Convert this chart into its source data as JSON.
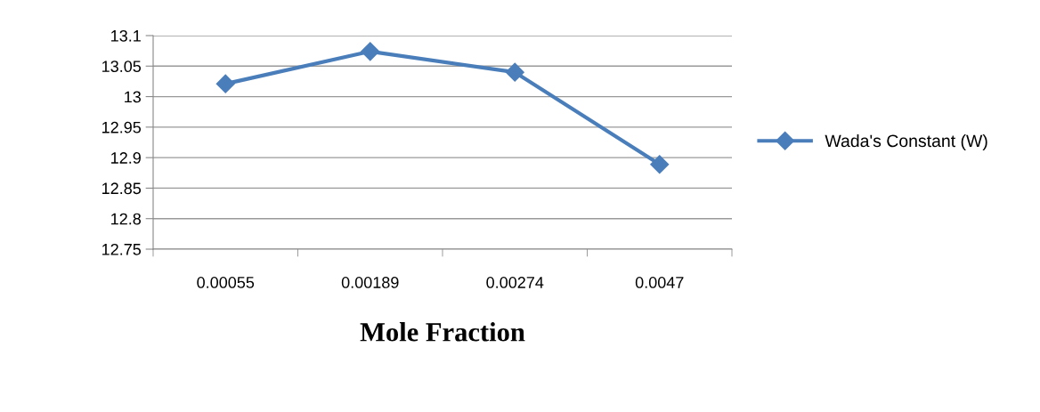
{
  "chart_data": {
    "type": "line",
    "xlabel": "Mole Fraction",
    "categories": [
      "0.00055",
      "0.00189",
      "0.00274",
      "0.0047"
    ],
    "series": [
      {
        "name": "Wada's Constant (W)",
        "color": "#4a7ebb",
        "values": [
          13.021,
          13.074,
          13.04,
          12.889
        ]
      }
    ],
    "ylim": [
      12.75,
      13.1
    ],
    "yticks": [
      12.75,
      12.8,
      12.85,
      12.9,
      12.95,
      13,
      13.05,
      13.1
    ],
    "grid": "y",
    "legend": "right",
    "marker": "diamond",
    "line_style": "solid"
  }
}
